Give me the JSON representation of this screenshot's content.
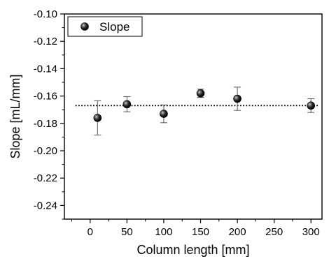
{
  "chart_data": {
    "type": "scatter",
    "title": "",
    "xlabel": "Column length [mm]",
    "ylabel": "Slope [mL/mm]",
    "xlim": [
      -35,
      315
    ],
    "ylim": [
      -0.25,
      -0.1
    ],
    "x_ticks": [
      0,
      50,
      100,
      150,
      200,
      250,
      300
    ],
    "x_tick_labels": [
      "0",
      "50",
      "100",
      "150",
      "200",
      "250",
      "300"
    ],
    "y_ticks": [
      -0.1,
      -0.12,
      -0.14,
      -0.16,
      -0.18,
      -0.2,
      -0.22,
      -0.24
    ],
    "y_tick_labels": [
      "-0.10",
      "-0.12",
      "-0.14",
      "-0.16",
      "-0.18",
      "-0.20",
      "-0.22",
      "-0.24"
    ],
    "grid": false,
    "legend_position": "top-left",
    "series": [
      {
        "name": "Slope",
        "marker": "sphere",
        "color": "#000000",
        "points": [
          {
            "x": 10,
            "y": -0.176,
            "err": 0.0125
          },
          {
            "x": 50,
            "y": -0.166,
            "err": 0.0055
          },
          {
            "x": 100,
            "y": -0.173,
            "err": 0.0065
          },
          {
            "x": 150,
            "y": -0.158,
            "err": 0.003
          },
          {
            "x": 200,
            "y": -0.162,
            "err": 0.0085
          },
          {
            "x": 300,
            "y": -0.167,
            "err": 0.005
          }
        ]
      }
    ],
    "reference_line": {
      "style": "dotted",
      "y": -0.167,
      "x_range": [
        -20,
        315
      ],
      "color": "#000000"
    }
  }
}
